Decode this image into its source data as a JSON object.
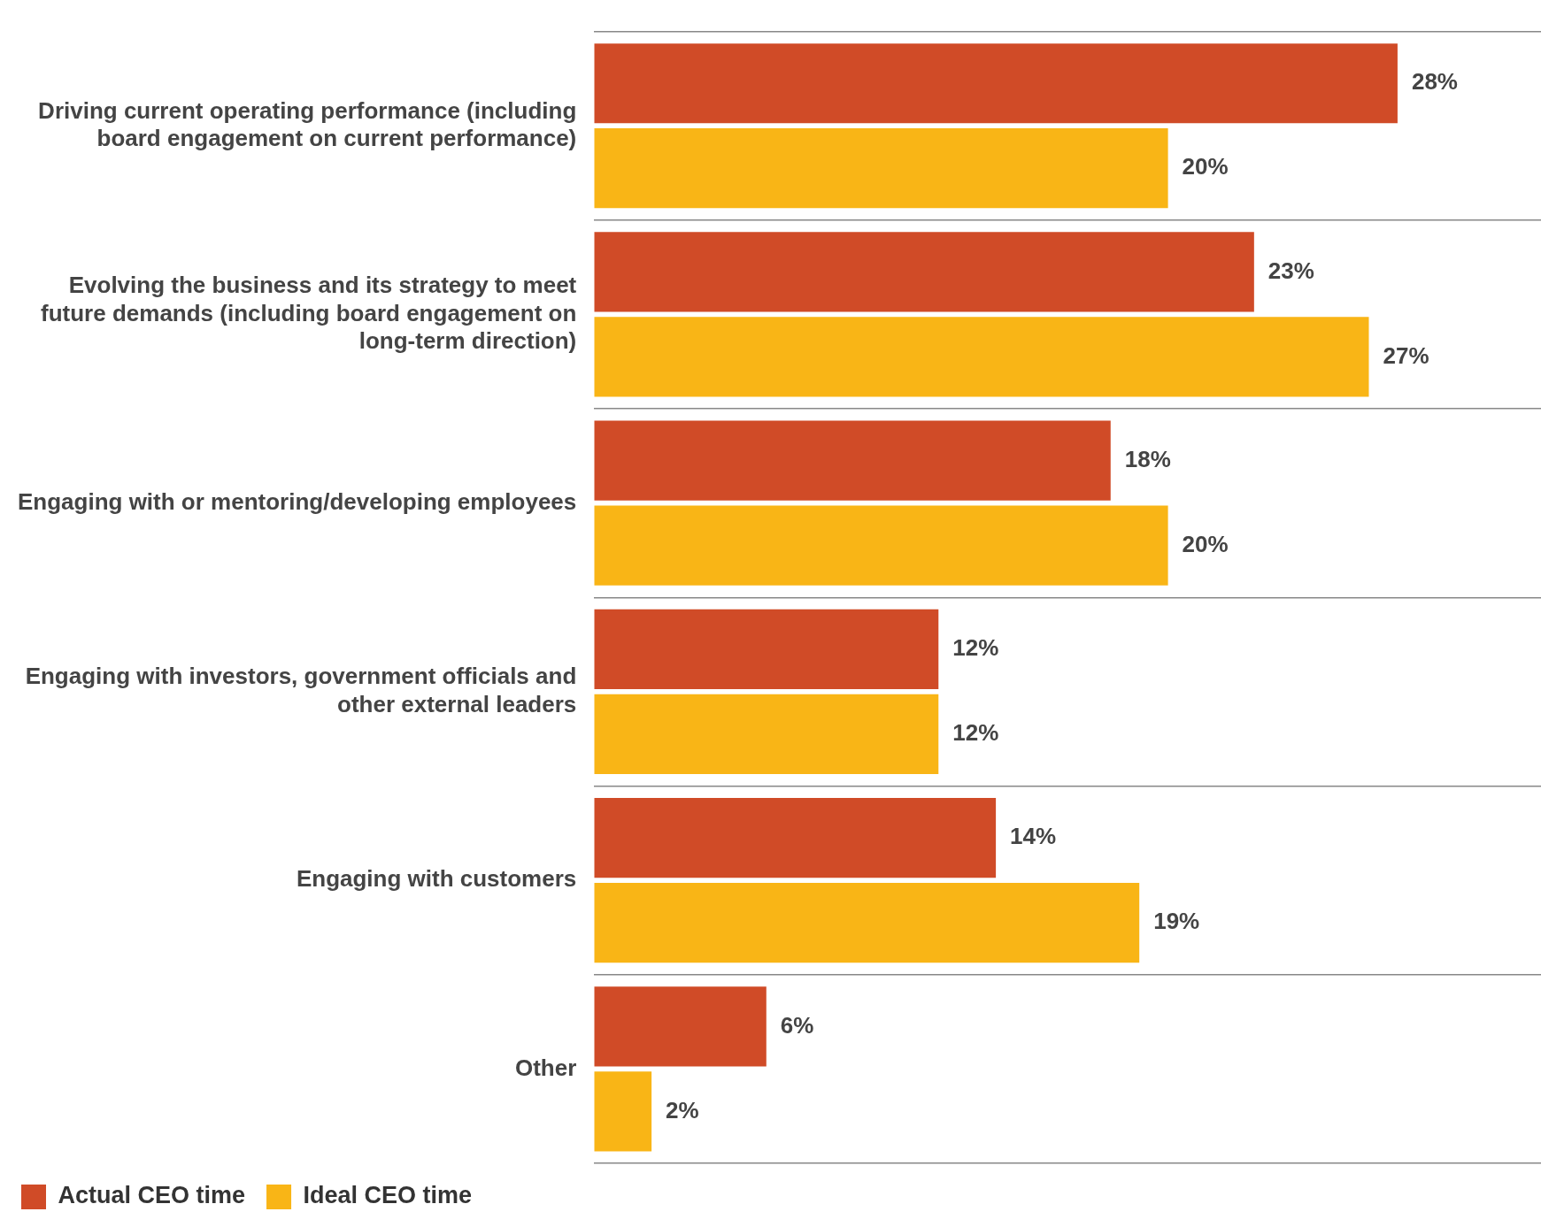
{
  "chart_data": {
    "type": "bar",
    "orientation": "horizontal",
    "categories": [
      "Driving current operating performance (including board engagement on current performance)",
      "Evolving the business and its strategy to meet future demands (including board engagement on long-term direction)",
      "Engaging with or mentoring/developing employees",
      "Engaging with investors, government officials and other external leaders",
      "Engaging with customers",
      "Other"
    ],
    "series": [
      {
        "name": "Actual CEO time",
        "color": "#d04b27",
        "values": [
          28,
          23,
          18,
          12,
          14,
          6
        ],
        "value_labels": [
          "28%",
          "23%",
          "18%",
          "12%",
          "14%",
          "6%"
        ]
      },
      {
        "name": "Ideal CEO time",
        "color": "#f9b516",
        "values": [
          20,
          27,
          20,
          12,
          19,
          2
        ],
        "value_labels": [
          "20%",
          "27%",
          "20%",
          "12%",
          "19%",
          "2%"
        ]
      }
    ],
    "xlim": [
      0,
      33
    ],
    "tick_labels": "y",
    "grid": "y",
    "legend": "bottom left"
  }
}
